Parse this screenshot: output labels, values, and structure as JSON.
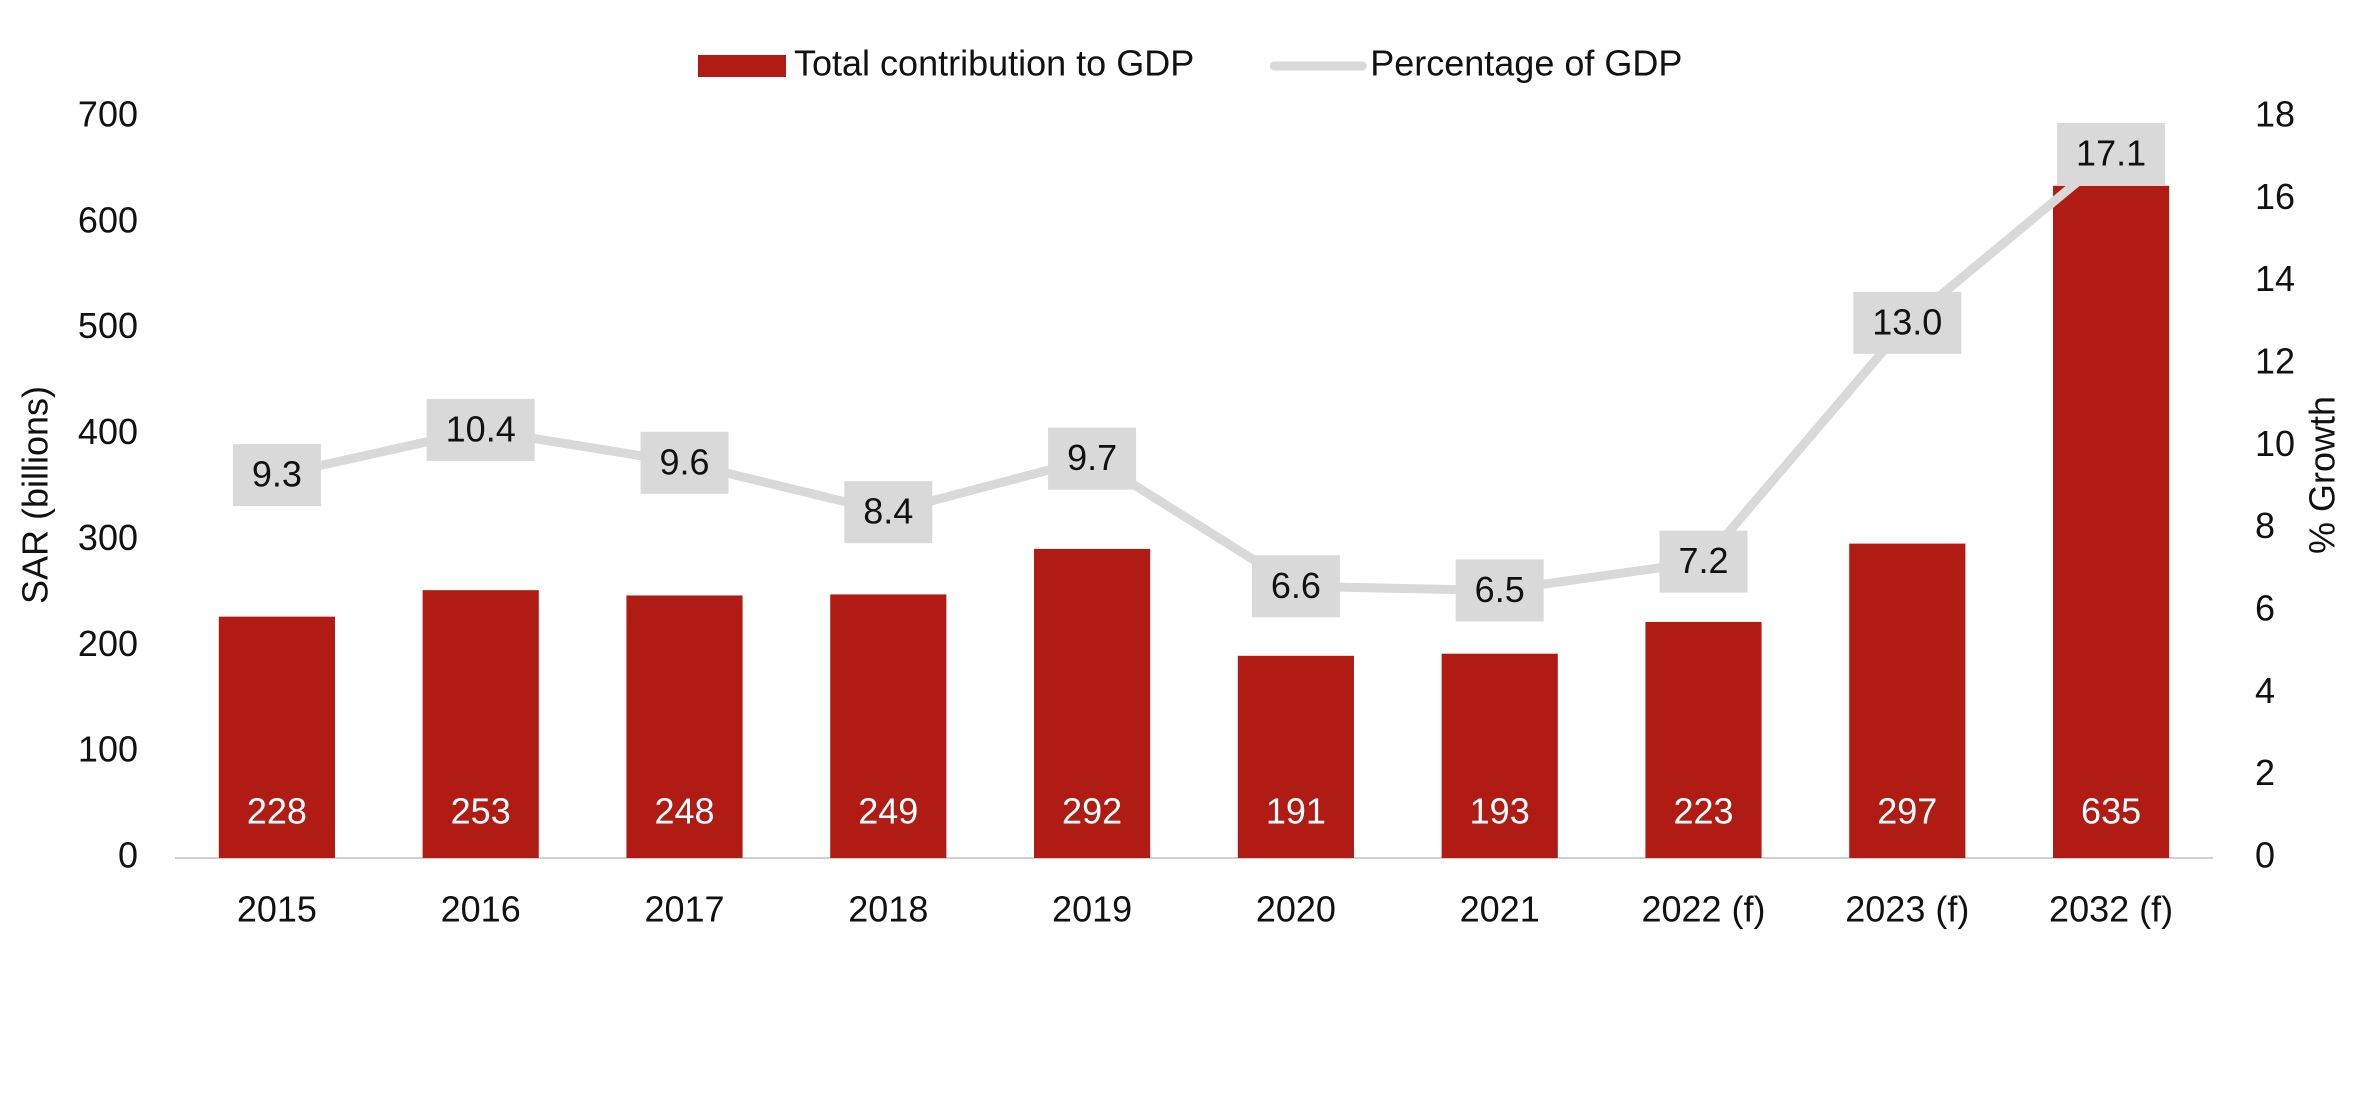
{
  "chart_data": {
    "type": "combo",
    "categories": [
      "2015",
      "2016",
      "2017",
      "2018",
      "2019",
      "2020",
      "2021",
      "2022 (f)",
      "2023 (f)",
      "2032 (f)"
    ],
    "series": [
      {
        "name": "Total contribution to GDP",
        "type": "bar",
        "color": "#b01c14",
        "values": [
          228,
          253,
          248,
          249,
          292,
          191,
          193,
          223,
          297,
          635
        ]
      },
      {
        "name": "Percentage of GDP",
        "type": "line",
        "axis": "y2",
        "color": "#d9d9d9",
        "values": [
          9.3,
          10.4,
          9.6,
          8.4,
          9.7,
          6.6,
          6.5,
          7.2,
          13.0,
          17.1
        ],
        "value_labels": [
          "9.3",
          "10.4",
          "9.6",
          "8.4",
          "9.7",
          "6.6",
          "6.5",
          "7.2",
          "13.0",
          "17.1"
        ]
      }
    ],
    "ylabel": "SAR (billions)",
    "y2label": "% Growth",
    "ylim": [
      0,
      700
    ],
    "yticks": [
      0,
      100,
      200,
      300,
      400,
      500,
      600,
      700
    ],
    "y2lim": [
      0,
      18
    ],
    "y2ticks": [
      0,
      2,
      4,
      6,
      8,
      10,
      12,
      14,
      16,
      18
    ],
    "legend": "top"
  }
}
